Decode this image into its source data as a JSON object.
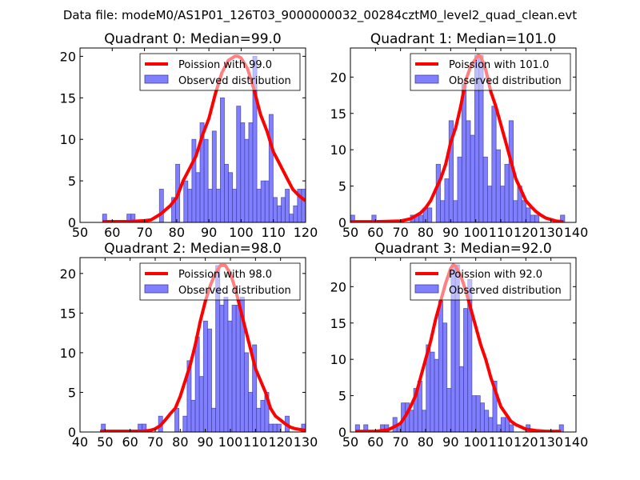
{
  "figure": {
    "suptitle": "Data file: modeM0/AS1P01_126T03_9000000032_00284cztM0_level2_quad_clean.evt"
  },
  "colors": {
    "bar_fill": "#7f7fff",
    "bar_edge": "#3f3f9f",
    "poisson_line": "#ff0000",
    "axes": "#000000"
  },
  "chart_data": [
    {
      "type": "bar",
      "title": "Quadrant 0: Median=99.0",
      "xlabel": "",
      "ylabel": "",
      "xlim": [
        50,
        120
      ],
      "ylim": [
        0,
        21
      ],
      "xticks": [
        "50",
        "60",
        "70",
        "80",
        "90",
        "100",
        "110",
        "120"
      ],
      "yticks": [
        "0",
        "5",
        "10",
        "15",
        "20"
      ],
      "xtick_values": [
        50,
        60,
        70,
        80,
        90,
        100,
        110,
        120
      ],
      "ytick_values": [
        0,
        5,
        10,
        15,
        20
      ],
      "legend": [
        "Poission with 99.0",
        "Observed distribution"
      ],
      "legend_position": "upper-right",
      "histogram": {
        "bin_start": 57.0,
        "bin_width": 1.26,
        "counts": [
          1,
          0,
          0,
          0,
          0,
          0,
          1,
          1,
          0,
          0,
          0,
          0,
          0,
          0,
          4,
          0,
          0,
          3,
          7,
          0,
          5,
          4,
          10,
          6,
          12,
          10,
          4,
          11,
          4,
          15,
          7,
          6,
          4,
          14,
          12,
          10,
          12,
          20,
          4,
          5,
          5,
          13,
          3,
          2,
          3,
          4,
          1,
          2,
          4,
          4
        ]
      },
      "poisson": {
        "mean": 99.0,
        "x": [
          57,
          60,
          65,
          70,
          72,
          75,
          78,
          80,
          82,
          84,
          86,
          88,
          90,
          92,
          94,
          96,
          98,
          99,
          100,
          102,
          104,
          106,
          108,
          110,
          112,
          114,
          116,
          118,
          120
        ],
        "y": [
          0.1,
          0.1,
          0.1,
          0.2,
          0.3,
          1.0,
          2.0,
          3.0,
          5.0,
          6.5,
          8.0,
          10.5,
          12.5,
          15.5,
          18.0,
          19.5,
          20.0,
          20.0,
          19.8,
          18.5,
          16.0,
          13.0,
          11.0,
          8.5,
          7.0,
          5.5,
          4.0,
          3.2,
          2.6
        ]
      }
    },
    {
      "type": "bar",
      "title": "Quadrant 1: Median=101.0",
      "xlabel": "",
      "ylabel": "",
      "xlim": [
        50,
        140
      ],
      "ylim": [
        0,
        24
      ],
      "xticks": [
        "50",
        "60",
        "70",
        "80",
        "90",
        "100",
        "110",
        "120",
        "130",
        "140"
      ],
      "yticks": [
        "0",
        "5",
        "10",
        "15",
        "20"
      ],
      "xtick_values": [
        50,
        60,
        70,
        80,
        90,
        100,
        110,
        120,
        130,
        140
      ],
      "ytick_values": [
        0,
        5,
        10,
        15,
        20
      ],
      "legend": [
        "Poission with 101.0",
        "Observed distribution"
      ],
      "legend_position": "upper-right",
      "histogram": {
        "bin_start": 50.0,
        "bin_width": 1.71,
        "counts": [
          1,
          0,
          0,
          0,
          0,
          1,
          0,
          0,
          0,
          0,
          0,
          0,
          0,
          0,
          1,
          1,
          1,
          2,
          2,
          0,
          8,
          3,
          6,
          14,
          3,
          9,
          19,
          14,
          12,
          23,
          23,
          9,
          5,
          16,
          10,
          5,
          8,
          14,
          3,
          5,
          3,
          2,
          1,
          1,
          0,
          0,
          0,
          0,
          0,
          1
        ]
      },
      "poisson": {
        "mean": 101.0,
        "x": [
          50,
          60,
          70,
          74,
          78,
          80,
          82,
          84,
          86,
          88,
          90,
          92,
          94,
          96,
          98,
          100,
          101,
          102,
          104,
          106,
          108,
          110,
          112,
          114,
          116,
          118,
          120,
          122,
          124,
          126,
          128,
          130,
          132,
          135
        ],
        "y": [
          0.1,
          0.1,
          0.2,
          0.5,
          1.3,
          2.0,
          3.0,
          4.5,
          6.0,
          8.0,
          11.0,
          13.0,
          16.0,
          19.5,
          21.5,
          22.5,
          23.0,
          22.8,
          21.0,
          18.0,
          16.0,
          13.5,
          11.0,
          8.5,
          6.0,
          4.5,
          3.0,
          2.2,
          1.5,
          1.0,
          0.6,
          0.4,
          0.2,
          0.1
        ]
      }
    },
    {
      "type": "bar",
      "title": "Quadrant 2: Median=98.0",
      "xlabel": "",
      "ylabel": "",
      "xlim": [
        40,
        130
      ],
      "ylim": [
        0,
        22
      ],
      "xticks": [
        "40",
        "50",
        "60",
        "70",
        "80",
        "90",
        "100",
        "110",
        "120",
        "130"
      ],
      "yticks": [
        "0",
        "5",
        "10",
        "15",
        "20"
      ],
      "xtick_values": [
        40,
        50,
        60,
        70,
        80,
        90,
        100,
        110,
        120,
        130
      ],
      "ytick_values": [
        0,
        5,
        10,
        15,
        20
      ],
      "legend": [
        "Poission with 98.0",
        "Observed distribution"
      ],
      "legend_position": "upper-right",
      "histogram": {
        "bin_start": 48.5,
        "bin_width": 1.63,
        "counts": [
          1,
          0,
          0,
          0,
          0,
          0,
          0,
          0,
          0,
          1,
          1,
          0,
          0,
          0,
          2,
          0,
          0,
          0,
          3,
          0,
          2,
          9,
          4,
          12,
          7,
          14,
          13,
          3,
          21,
          16,
          17,
          14,
          16,
          16,
          17,
          10,
          5,
          11,
          3,
          4,
          5,
          1,
          1,
          1,
          0,
          2,
          0,
          0,
          0,
          1
        ]
      },
      "poisson": {
        "mean": 98.0,
        "x": [
          48,
          55,
          60,
          65,
          68,
          70,
          72,
          74,
          76,
          78,
          80,
          82,
          84,
          86,
          88,
          90,
          92,
          94,
          96,
          98,
          100,
          102,
          104,
          106,
          108,
          110,
          112,
          114,
          116,
          118,
          120,
          122,
          124,
          126,
          128,
          130
        ],
        "y": [
          0.1,
          0.1,
          0.1,
          0.1,
          0.2,
          0.4,
          0.8,
          1.5,
          2.3,
          3.0,
          4.5,
          6.5,
          8.5,
          11.0,
          14.0,
          16.5,
          18.5,
          20.0,
          21.0,
          21.0,
          20.0,
          18.0,
          15.5,
          13.0,
          10.5,
          8.0,
          6.5,
          5.0,
          3.0,
          2.0,
          1.5,
          1.0,
          0.6,
          0.4,
          0.3,
          0.2
        ]
      }
    },
    {
      "type": "bar",
      "title": "Quadrant 3: Median=92.0",
      "xlabel": "",
      "ylabel": "",
      "xlim": [
        50,
        140
      ],
      "ylim": [
        0,
        24
      ],
      "xticks": [
        "50",
        "60",
        "70",
        "80",
        "90",
        "100",
        "110",
        "120",
        "130",
        "140"
      ],
      "yticks": [
        "0",
        "5",
        "10",
        "15",
        "20"
      ],
      "xtick_values": [
        50,
        60,
        70,
        80,
        90,
        100,
        110,
        120,
        130,
        140
      ],
      "ytick_values": [
        0,
        5,
        10,
        15,
        20
      ],
      "legend": [
        "Poission with 92.0",
        "Observed distribution"
      ],
      "legend_position": "upper-right",
      "histogram": {
        "bin_start": 52.0,
        "bin_width": 1.66,
        "counts": [
          1,
          0,
          1,
          0,
          0,
          0,
          1,
          1,
          0,
          2,
          1,
          4,
          4,
          3,
          6,
          7,
          3,
          12,
          11,
          10,
          18,
          15,
          6,
          23,
          23,
          9,
          17,
          21,
          5,
          5,
          4,
          3,
          2,
          7,
          1,
          2,
          2,
          1,
          0,
          0,
          0,
          1,
          0,
          0,
          0,
          0,
          0,
          0,
          0,
          1
        ]
      },
      "poisson": {
        "mean": 92.0,
        "x": [
          52,
          60,
          65,
          68,
          70,
          72,
          74,
          76,
          78,
          80,
          82,
          84,
          86,
          88,
          90,
          91,
          92,
          94,
          96,
          98,
          100,
          102,
          104,
          106,
          108,
          110,
          112,
          114,
          116,
          118,
          120,
          124,
          128,
          134
        ],
        "y": [
          0.1,
          0.1,
          0.3,
          0.8,
          1.2,
          2.2,
          3.5,
          5.0,
          7.5,
          10.0,
          12.5,
          15.5,
          18.0,
          20.5,
          22.5,
          23.0,
          22.8,
          21.5,
          19.5,
          17.0,
          14.5,
          12.0,
          10.0,
          7.5,
          5.5,
          3.5,
          2.5,
          1.5,
          1.0,
          0.7,
          0.4,
          0.2,
          0.1,
          0.1
        ]
      }
    }
  ]
}
